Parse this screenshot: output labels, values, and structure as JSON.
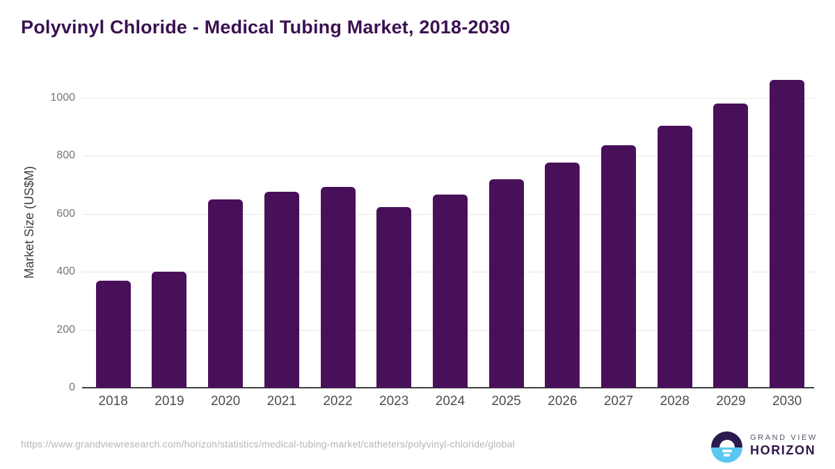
{
  "chart_data": {
    "type": "bar",
    "title": "Polyvinyl Chloride - Medical Tubing Market, 2018-2030",
    "ylabel": "Market Size (US$M)",
    "xlabel": "",
    "categories": [
      "2018",
      "2019",
      "2020",
      "2021",
      "2022",
      "2023",
      "2024",
      "2025",
      "2026",
      "2027",
      "2028",
      "2029",
      "2030"
    ],
    "values": [
      370,
      400,
      651,
      676,
      693,
      624,
      667,
      719,
      776,
      837,
      903,
      980,
      1063
    ],
    "ylim": [
      0,
      1100
    ],
    "yticks": [
      0,
      200,
      400,
      600,
      800,
      1000
    ],
    "grid": "horizontal",
    "legend": "none",
    "bar_color": "#49105a"
  },
  "colors": {
    "title": "#3b1152",
    "bar": "#49105a",
    "gridline": "#e7e7e7",
    "axis_line": "#3f3f3f",
    "ytick_label": "#757575",
    "xtick_label": "#4d4d4d",
    "url_text": "#b5b5b5",
    "logo_dark": "#2a1a4e",
    "logo_blue": "#5bc7f0",
    "logo_text_sub": "#575264",
    "logo_text_main": "#2e1747"
  },
  "footer": {
    "source_url": "https://www.grandviewresearch.com/horizon/statistics/medical-tubing-market/catheters/polyvinyl-chloride/global",
    "logo": {
      "line1": "GRAND VIEW",
      "line2": "HORIZON"
    }
  }
}
